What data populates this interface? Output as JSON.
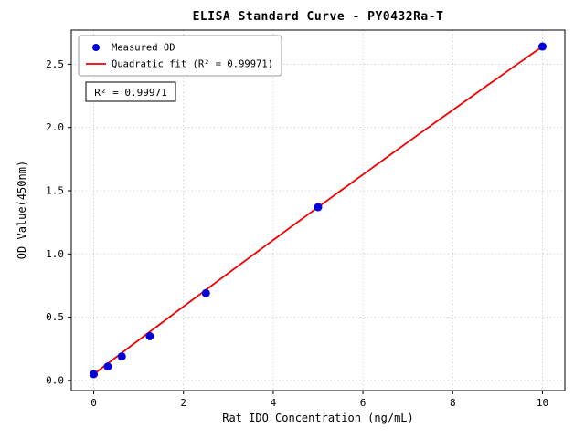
{
  "chart_data": {
    "type": "scatter",
    "title": "ELISA Standard Curve - PY0432Ra-T",
    "xlabel": "Rat IDO Concentration (ng/mL)",
    "ylabel": "OD Value(450nm)",
    "xlim": [
      -0.5,
      10.5
    ],
    "ylim": [
      -0.08,
      2.77
    ],
    "x_ticks": [
      0,
      2,
      4,
      6,
      8,
      10
    ],
    "y_ticks": [
      0.0,
      0.5,
      1.0,
      1.5,
      2.0,
      2.5
    ],
    "grid": true,
    "legend_position": "upper-left",
    "annotation_box": "R² = 0.99971",
    "colors": {
      "marker": "#0000dd",
      "fit_line": "#ee0000",
      "grid": "#b5b5b5",
      "axis": "#000000",
      "legend_border": "#999999",
      "text": "#000000"
    },
    "series": [
      {
        "name": "Measured OD",
        "type": "scatter",
        "x": [
          0,
          0.313,
          0.625,
          1.25,
          2.5,
          5,
          10
        ],
        "y": [
          0.05,
          0.11,
          0.19,
          0.35,
          0.69,
          1.37,
          2.64
        ]
      },
      {
        "name": "Quadratic fit (R² = 0.99971)",
        "type": "line",
        "fit": {
          "a": 0.05,
          "b": 0.269,
          "c": -0.001
        },
        "x_range": [
          0,
          10
        ]
      }
    ]
  }
}
